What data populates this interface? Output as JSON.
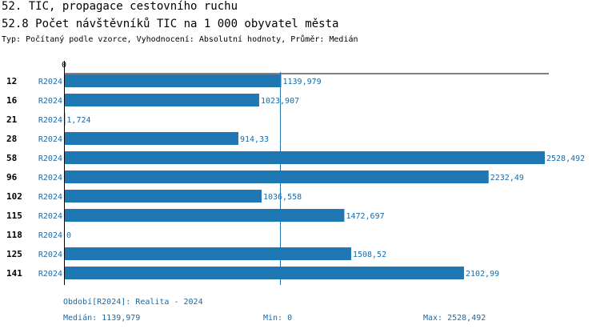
{
  "header": {
    "title": "52. TIC, propagace cestovního ruchu",
    "subtitle": "52.8 Počet návštěvníků TIC na 1 000 obyvatel města",
    "description": "Typ: Počítaný podle vzorce, Vyhodnocení: Absolutní hodnoty, Průměr: Medián"
  },
  "chart_data": {
    "type": "bar",
    "orientation": "horizontal",
    "zero_label": "0",
    "categories": [
      "12",
      "16",
      "21",
      "28",
      "58",
      "96",
      "102",
      "115",
      "118",
      "125",
      "141"
    ],
    "series": [
      {
        "name": "R2024",
        "values": [
          1139.979,
          1023.907,
          1.724,
          914.33,
          2528.492,
          2232.49,
          1036.558,
          1472.697,
          0,
          1508.52,
          2102.99
        ],
        "labels": [
          "1139,979",
          "1023,907",
          "1,724",
          "914,33",
          "2528,492",
          "2232,49",
          "1036,558",
          "1472,697",
          "0",
          "1508,52",
          "2102,99"
        ]
      }
    ],
    "median_line": 1139.979,
    "xlim": [
      0,
      2528.492
    ],
    "colors": {
      "bar": "#1f77b4",
      "label": "#1a6aa6"
    }
  },
  "footer": {
    "period": "Období[R2024]: Realita - 2024",
    "median": "Medián: 1139,979",
    "min": "Min: 0",
    "max": "Max: 2528,492"
  }
}
